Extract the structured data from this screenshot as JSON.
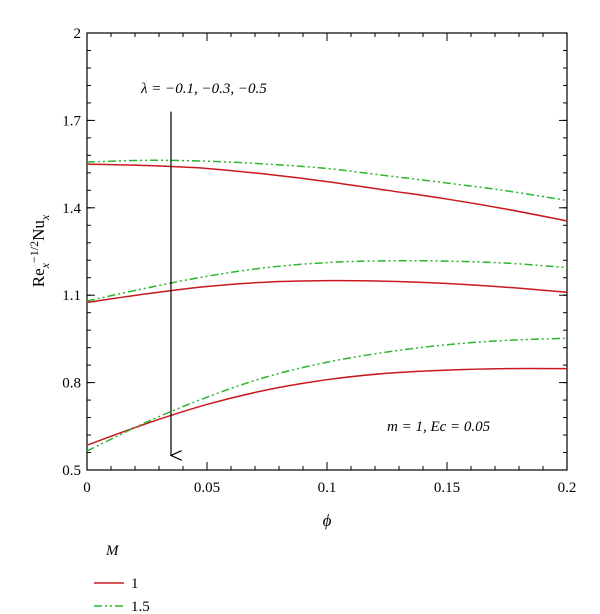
{
  "chart_data": {
    "type": "line",
    "xlabel": "ϕ",
    "ylabel": "Re_x^{-1/2} Nu_x",
    "xlim": [
      0,
      0.2
    ],
    "ylim": [
      0.5,
      2.0
    ],
    "xticks": [
      0,
      0.05,
      0.1,
      0.15,
      0.2
    ],
    "yticks": [
      0.5,
      0.8,
      1.1,
      1.4,
      1.7,
      2.0
    ],
    "xtick_labels": [
      "0",
      "0.05",
      "0.1",
      "0.15",
      "0.2"
    ],
    "ytick_labels": [
      "0.5",
      "0.8",
      "1.1",
      "1.4",
      "1.7",
      "2"
    ],
    "grid": false,
    "legend": {
      "title": "M",
      "placement": "bottom-left",
      "entries": [
        {
          "label": "1",
          "color": "#c8191e",
          "dash": "solid"
        },
        {
          "label": "1.5",
          "color": "#2db52d",
          "dash": "dash-dot-dot"
        }
      ]
    },
    "annotations": {
      "lambda": "λ = −0.1, −0.3, −0.5",
      "params": "m = 1, Ec = 0.05"
    },
    "arrow": {
      "x": 0.035,
      "y_from": 1.73,
      "y_to": 0.55
    },
    "x": [
      0,
      0.025,
      0.05,
      0.075,
      0.1,
      0.125,
      0.15,
      0.175,
      0.2
    ],
    "series": [
      {
        "group": "M = 1",
        "lambda": "-0.1",
        "color": "#c8191e",
        "dash": "solid",
        "values": [
          1.55,
          1.545,
          1.535,
          1.515,
          1.49,
          1.46,
          1.43,
          1.395,
          1.355
        ]
      },
      {
        "group": "M = 1.5",
        "lambda": "-0.1",
        "color": "#2db52d",
        "dash": "dash-dot-dot",
        "values": [
          1.557,
          1.563,
          1.56,
          1.55,
          1.535,
          1.51,
          1.485,
          1.458,
          1.425
        ]
      },
      {
        "group": "M = 1",
        "lambda": "-0.3",
        "color": "#c8191e",
        "dash": "solid",
        "values": [
          1.075,
          1.105,
          1.13,
          1.145,
          1.15,
          1.148,
          1.14,
          1.127,
          1.11
        ]
      },
      {
        "group": "M = 1.5",
        "lambda": "-0.3",
        "color": "#2db52d",
        "dash": "dash-dot-dot",
        "values": [
          1.08,
          1.125,
          1.165,
          1.195,
          1.212,
          1.218,
          1.217,
          1.21,
          1.195
        ]
      },
      {
        "group": "M = 1",
        "lambda": "-0.5",
        "color": "#c8191e",
        "dash": "solid",
        "values": [
          0.585,
          0.66,
          0.725,
          0.775,
          0.81,
          0.832,
          0.843,
          0.848,
          0.848
        ]
      },
      {
        "group": "M = 1.5",
        "lambda": "-0.5",
        "color": "#2db52d",
        "dash": "dash-dot-dot",
        "values": [
          0.565,
          0.665,
          0.75,
          0.82,
          0.87,
          0.905,
          0.93,
          0.945,
          0.952
        ]
      }
    ]
  }
}
